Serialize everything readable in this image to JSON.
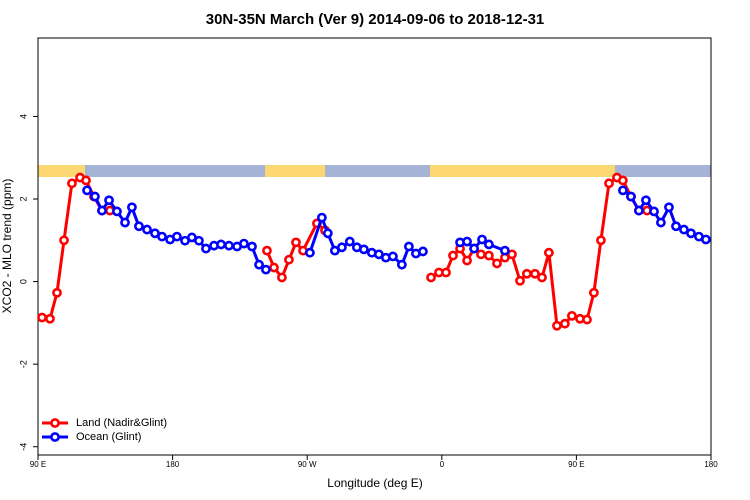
{
  "chart_data": {
    "type": "line",
    "title": "30N-35N March (Ver 9)   2014-09-06 to 2018-12-31",
    "xlabel": "Longitude (deg E)",
    "ylabel": "XCO2 - MLO trend (ppm)",
    "xlim": [
      90,
      540
    ],
    "ylim": [
      -4.2,
      5.9
    ],
    "xticks": [
      {
        "value": 90,
        "label": "90 E"
      },
      180,
      {
        "value": 270,
        "label": "90 W"
      },
      {
        "value": 360,
        "label": "0"
      },
      {
        "value": 450,
        "label": "90 E"
      },
      180
    ],
    "yticks": [
      -4,
      -2,
      0,
      2,
      4
    ],
    "legend": "bottom-left",
    "series": [
      {
        "name": "Land (Nadir&Glint)",
        "color": "#ff0000",
        "x": [
          92.7,
          98.0,
          102.7,
          107.4,
          112.7,
          118.1,
          122.1,
          127.4,
          132.8,
          138.1,
          200,
          243.1,
          247.8,
          253.1,
          257.8,
          262.5,
          267.2,
          276.5,
          281.9,
          320,
          352.8,
          358.1,
          362.8,
          367.5,
          372.2,
          376.9,
          381.6,
          386.2,
          391.5,
          396.9,
          402.2,
          406.9,
          412.3,
          416.9,
          422.3,
          427.0,
          431.6,
          437.0,
          442.3,
          447.0,
          452.4,
          457.1,
          461.7,
          466.4,
          471.8,
          477.1,
          481.1,
          486.5,
          491.8,
          497.2
        ],
        "values": [
          -0.87,
          -0.9,
          -0.27,
          1.0,
          2.38,
          2.52,
          2.45,
          2.06,
          1.72,
          1.72,
          null,
          0.75,
          0.34,
          0.1,
          0.53,
          0.95,
          0.75,
          1.41,
          1.24,
          null,
          0.1,
          0.22,
          0.22,
          0.63,
          0.8,
          0.51,
          0.8,
          0.66,
          0.63,
          0.44,
          0.58,
          0.66,
          0.02,
          0.19,
          0.19,
          0.1,
          0.7,
          -1.07,
          -1.02,
          -0.83,
          -0.9,
          -0.92,
          -0.27,
          1.0,
          2.38,
          2.52,
          2.45,
          2.06,
          1.72,
          1.72
        ]
      },
      {
        "name": "Ocean (Glint)",
        "color": "#0000ff",
        "x": [
          122.8,
          128.1,
          132.8,
          137.5,
          142.8,
          148.2,
          152.8,
          157.5,
          162.9,
          168.2,
          172.9,
          178.3,
          182.9,
          188.3,
          192.9,
          197.6,
          202.3,
          207.7,
          212.4,
          217.7,
          223.1,
          227.7,
          233.1,
          237.8,
          242.4,
          255,
          271.8,
          279.8,
          283.8,
          288.5,
          293.2,
          298.5,
          303.2,
          307.9,
          313.2,
          317.9,
          322.6,
          327.3,
          333.3,
          338.0,
          342.7,
          347.4,
          360,
          372.2,
          376.9,
          381.6,
          386.9,
          391.5,
          402.2,
          440,
          481.1,
          486.5,
          491.8,
          496.5,
          501.9,
          506.5,
          511.9,
          516.6,
          521.9,
          526.6,
          531.9,
          536.6
        ],
        "values": [
          2.21,
          2.06,
          1.72,
          1.97,
          1.7,
          1.43,
          1.8,
          1.34,
          1.26,
          1.17,
          1.09,
          1.02,
          1.09,
          0.99,
          1.07,
          0.99,
          0.8,
          0.87,
          0.9,
          0.87,
          0.85,
          0.92,
          0.85,
          0.41,
          0.29,
          null,
          0.7,
          1.55,
          1.17,
          0.75,
          0.83,
          0.97,
          0.83,
          0.78,
          0.7,
          0.66,
          0.58,
          0.61,
          0.41,
          0.85,
          0.68,
          0.73,
          null,
          0.95,
          0.97,
          0.8,
          1.02,
          0.9,
          0.75,
          null,
          2.21,
          2.06,
          1.72,
          1.97,
          1.7,
          1.43,
          1.8,
          1.34,
          1.26,
          1.17,
          1.09,
          1.02
        ]
      }
    ]
  }
}
